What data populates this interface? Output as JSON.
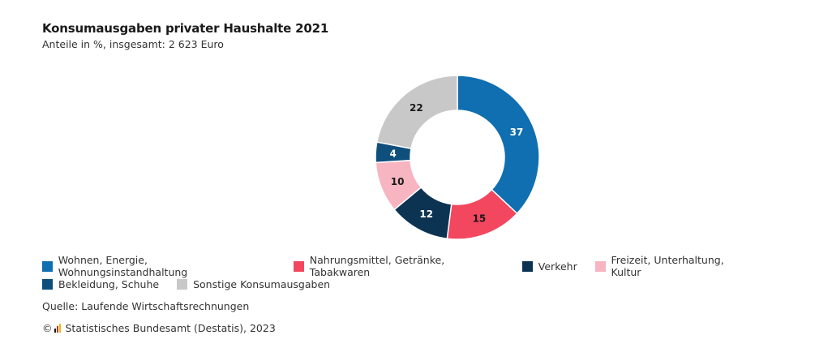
{
  "header": {
    "title": "Konsumausgaben privater Haushalte 2021",
    "subtitle": "Anteile in %, insgesamt: 2 623 Euro"
  },
  "chart_data": {
    "type": "pie",
    "title": "Konsumausgaben privater Haushalte 2021",
    "subtitle": "Anteile in %, insgesamt: 2 623 Euro",
    "categories": [
      "Wohnen, Energie, Wohnungsinstandhaltung",
      "Nahrungsmittel, Getränke, Tabakwaren",
      "Verkehr",
      "Freizeit, Unterhaltung, Kultur",
      "Bekleidung, Schuhe",
      "Sonstige Konsumausgaben"
    ],
    "values": [
      37,
      15,
      12,
      10,
      4,
      22
    ],
    "colors": [
      "#0f6fb0",
      "#f2475f",
      "#0d3352",
      "#f7b5c1",
      "#0e4f7c",
      "#c8c8c8"
    ],
    "label_colors": [
      "#ffffff",
      "#1a1a1a",
      "#ffffff",
      "#1a1a1a",
      "#ffffff",
      "#1a1a1a"
    ],
    "donut": true,
    "legend_position": "bottom"
  },
  "legend": {
    "rows": [
      [
        0,
        1,
        2,
        3
      ],
      [
        4,
        5
      ]
    ]
  },
  "footer": {
    "source": "Quelle: Laufende Wirtschaftsrechnungen",
    "copyright_symbol": "©",
    "copyright": "Statistisches Bundesamt (Destatis), 2023",
    "logo_colors": [
      "#1a1a1a",
      "#d8232a",
      "#f2b705"
    ]
  }
}
